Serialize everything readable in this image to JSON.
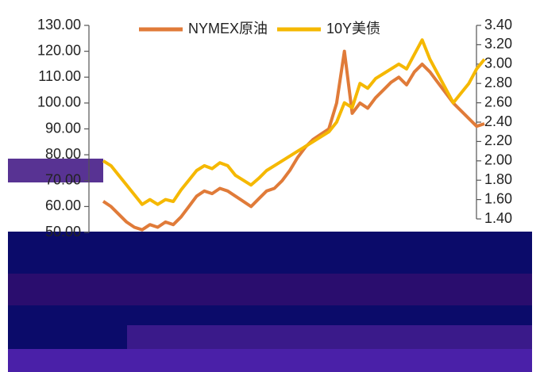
{
  "chart_data": {
    "type": "line",
    "categories": [
      null,
      null,
      null,
      null,
      null,
      null,
      null,
      null,
      null,
      null,
      null,
      null,
      null,
      null,
      null,
      null,
      null,
      null,
      null,
      null,
      null,
      null,
      null,
      null,
      null,
      null,
      null,
      null,
      null,
      null,
      null,
      null,
      null,
      null,
      null,
      null,
      null,
      null,
      null,
      null,
      null,
      null,
      null,
      null,
      null,
      null,
      null,
      null,
      null,
      null
    ],
    "series": [
      {
        "name": "NYMEX原油",
        "color": "#e07b39",
        "values": [
          62,
          60,
          57,
          54,
          52,
          51,
          53,
          52,
          54,
          53,
          56,
          60,
          64,
          66,
          65,
          67,
          66,
          64,
          62,
          60,
          63,
          66,
          67,
          70,
          74,
          79,
          83,
          86,
          88,
          90,
          100,
          120,
          96,
          100,
          98,
          102,
          105,
          108,
          110,
          107,
          112,
          115,
          112,
          108,
          104,
          100,
          97,
          94,
          91,
          92
        ]
      },
      {
        "name": "10Y美债",
        "color": "#f5b800",
        "axis": "y2",
        "values": [
          2.0,
          1.95,
          1.85,
          1.75,
          1.65,
          1.55,
          1.6,
          1.55,
          1.6,
          1.58,
          1.7,
          1.8,
          1.9,
          1.95,
          1.92,
          1.98,
          1.95,
          1.85,
          1.8,
          1.75,
          1.82,
          1.9,
          1.95,
          2.0,
          2.05,
          2.1,
          2.15,
          2.2,
          2.25,
          2.3,
          2.4,
          2.6,
          2.55,
          2.8,
          2.75,
          2.85,
          2.9,
          2.95,
          3.0,
          2.95,
          3.1,
          3.25,
          3.05,
          2.9,
          2.75,
          2.6,
          2.7,
          2.8,
          2.95,
          3.05
        ]
      }
    ],
    "ylim": [
      50,
      130
    ],
    "yticks": [
      {
        "value": 50,
        "label": "50.00"
      },
      {
        "value": 60,
        "label": "60.00"
      },
      {
        "value": 70,
        "label": "70.00"
      },
      {
        "value": 80,
        "label": "80.00"
      },
      {
        "value": 90,
        "label": "90.00"
      },
      {
        "value": 100,
        "label": "100.00"
      },
      {
        "value": 110,
        "label": "110.00"
      },
      {
        "value": 120,
        "label": "120.00"
      },
      {
        "value": 130,
        "label": "130.00"
      }
    ],
    "y2lim": [
      1.4,
      3.4
    ],
    "y2ticks": [
      {
        "value": 1.4,
        "label": "1.40"
      },
      {
        "value": 1.6,
        "label": "1.60"
      },
      {
        "value": 1.8,
        "label": "1.80"
      },
      {
        "value": 2,
        "label": "2.00"
      },
      {
        "value": 2.2,
        "label": "2.20"
      },
      {
        "value": 2.4,
        "label": "2.40"
      },
      {
        "value": 2.6,
        "label": "2.60"
      },
      {
        "value": 2.8,
        "label": "2.80"
      },
      {
        "value": 3,
        "label": "3.00"
      },
      {
        "value": 3.2,
        "label": "3.20"
      },
      {
        "value": 3.4,
        "label": "3.40"
      }
    ],
    "legend": "top"
  }
}
